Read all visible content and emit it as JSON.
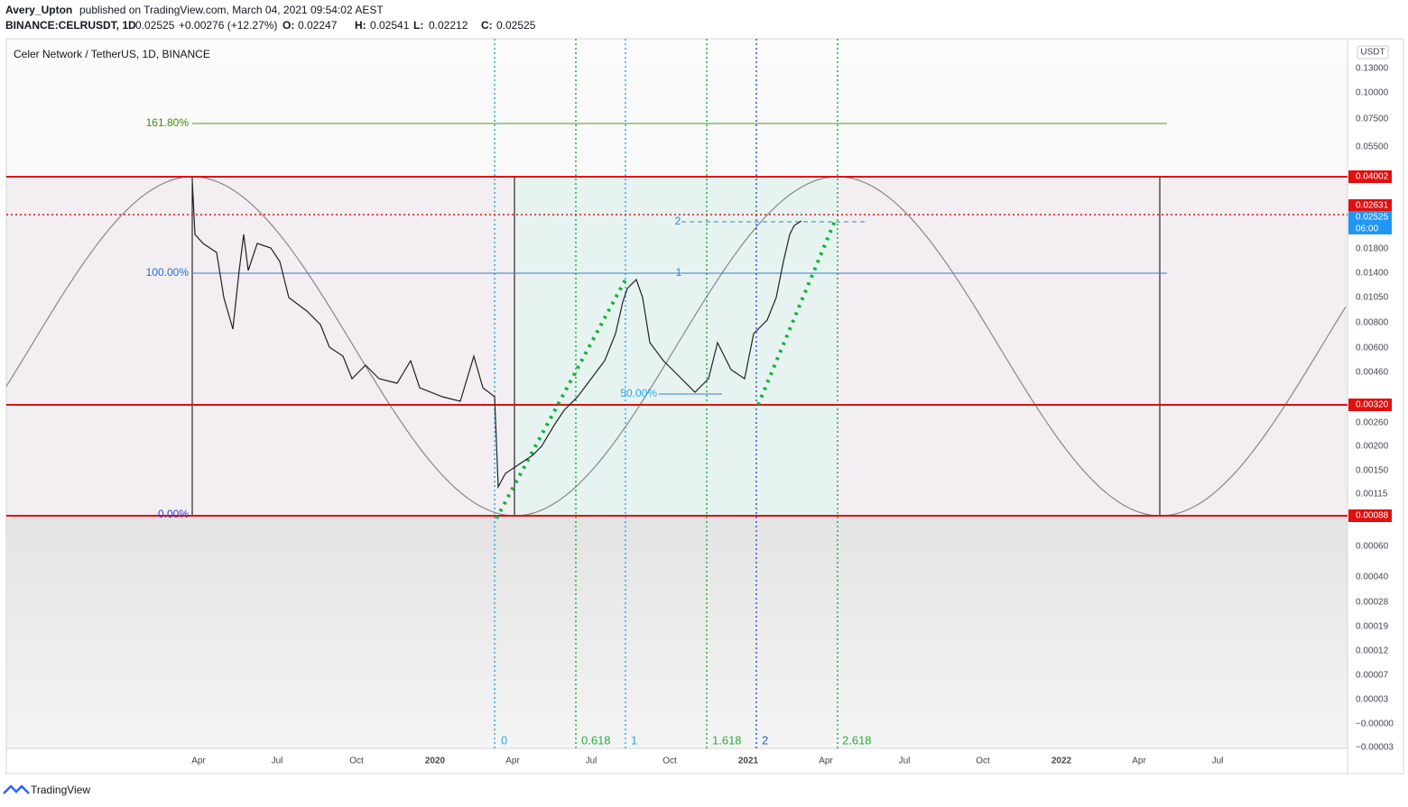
{
  "header": {
    "author": "Avery_Upton",
    "published": "published on TradingView.com, March 04, 2021 09:54:02 AEST"
  },
  "symbol": {
    "name": "BINANCE:CELRUSDT, 1D",
    "last": "0.02525",
    "change": "+0.00276 (+12.27%)",
    "ohlc": [
      {
        "label": "O:",
        "value": "0.02247"
      },
      {
        "label": "H:",
        "value": "0.02541"
      },
      {
        "label": "L:",
        "value": "0.02212"
      },
      {
        "label": "C:",
        "value": "0.02525"
      }
    ]
  },
  "legend": "Celer Network / TetherUS, 1D, BINANCE",
  "price_axis": {
    "unit": "USDT",
    "labels": [
      "0.13000",
      "0.10000",
      "0.07500",
      "0.05500",
      "0.01800",
      "0.01400",
      "0.01050",
      "0.00800",
      "0.00600",
      "0.00460",
      "0.00260",
      "0.00200",
      "0.00150",
      "0.00115",
      "0.00060",
      "0.00040",
      "0.00028",
      "0.00019",
      "0.00012",
      "0.00007",
      "0.00003",
      "−0.00000",
      "−0.00003"
    ]
  },
  "price_tags": [
    {
      "text": "0.04002"
    },
    {
      "text": "0.02631"
    },
    {
      "text": "0.02525",
      "time": "06:00"
    },
    {
      "text": "0.00320"
    },
    {
      "text": "0.00088"
    }
  ],
  "time_axis": [
    "Apr",
    "Jul",
    "Oct",
    "2020",
    "Apr",
    "Jul",
    "Oct",
    "2021",
    "Apr",
    "Jul",
    "Oct",
    "2022",
    "Apr",
    "Jul"
  ],
  "fib_levels": [
    "161.80%",
    "100.00%",
    "0.00%",
    "50.00%",
    "1",
    "2"
  ],
  "time_fib": [
    "0",
    "0.618",
    "1",
    "1.618",
    "2",
    "2.618"
  ],
  "footer": "TradingView"
}
